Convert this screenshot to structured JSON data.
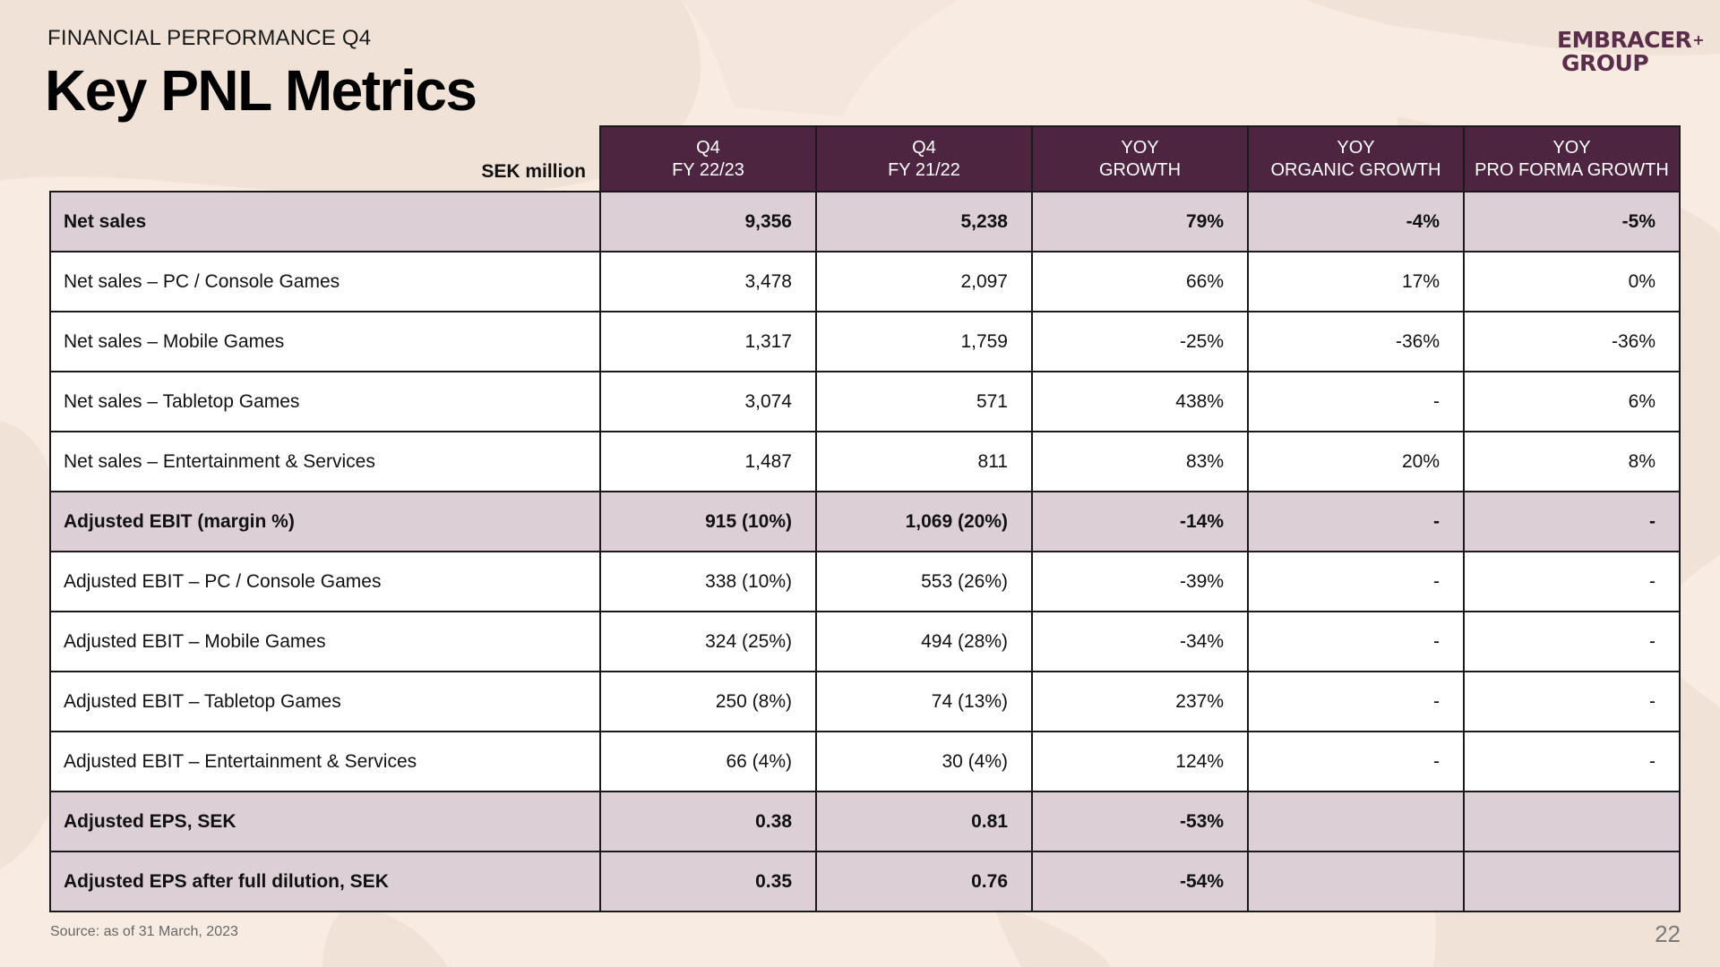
{
  "header": {
    "kicker": "FINANCIAL PERFORMANCE Q4",
    "title": "Key PNL Metrics"
  },
  "logo": {
    "line1": "EMBRACER",
    "line2": "GROUP",
    "plus": "+"
  },
  "table": {
    "unit_label": "SEK million",
    "columns": [
      {
        "line1": "Q4",
        "line2": "FY 22/23"
      },
      {
        "line1": "Q4",
        "line2": "FY 21/22"
      },
      {
        "line1": "YOY",
        "line2": "GROWTH"
      },
      {
        "line1": "YOY",
        "line2": "ORGANIC GROWTH"
      },
      {
        "line1": "YOY",
        "line2": "PRO FORMA GROWTH"
      }
    ],
    "rows": [
      {
        "label": "Net sales",
        "values": [
          "9,356",
          "5,238",
          "79%",
          "-4%",
          "-5%"
        ],
        "bold": true
      },
      {
        "label": "Net sales – PC / Console Games",
        "values": [
          "3,478",
          "2,097",
          "66%",
          "17%",
          "0%"
        ],
        "bold": false
      },
      {
        "label": "Net sales – Mobile Games",
        "values": [
          "1,317",
          "1,759",
          "-25%",
          "-36%",
          "-36%"
        ],
        "bold": false
      },
      {
        "label": "Net sales – Tabletop Games",
        "values": [
          "3,074",
          "571",
          "438%",
          "-",
          "6%"
        ],
        "bold": false
      },
      {
        "label": "Net sales – Entertainment & Services",
        "values": [
          "1,487",
          "811",
          "83%",
          "20%",
          "8%"
        ],
        "bold": false
      },
      {
        "label": "Adjusted EBIT (margin %)",
        "values": [
          "915 (10%)",
          "1,069 (20%)",
          "-14%",
          "-",
          "-"
        ],
        "bold": true
      },
      {
        "label": "Adjusted EBIT – PC / Console Games",
        "values": [
          "338 (10%)",
          "553 (26%)",
          "-39%",
          "-",
          "-"
        ],
        "bold": false
      },
      {
        "label": "Adjusted EBIT – Mobile Games",
        "values": [
          "324 (25%)",
          "494 (28%)",
          "-34%",
          "-",
          "-"
        ],
        "bold": false
      },
      {
        "label": "Adjusted EBIT – Tabletop Games",
        "values": [
          "250 (8%)",
          "74 (13%)",
          "237%",
          "-",
          "-"
        ],
        "bold": false
      },
      {
        "label": "Adjusted EBIT – Entertainment & Services",
        "values": [
          "66 (4%)",
          "30 (4%)",
          "124%",
          "-",
          "-"
        ],
        "bold": false
      },
      {
        "label": "Adjusted EPS, SEK",
        "values": [
          "0.38",
          "0.81",
          "-53%",
          "",
          ""
        ],
        "bold": true
      },
      {
        "label": "Adjusted EPS after full dilution, SEK",
        "values": [
          "0.35",
          "0.76",
          "-54%",
          "",
          ""
        ],
        "bold": true
      }
    ]
  },
  "footer": {
    "source": "Source: as of 31 March, 2023",
    "page_number": "22"
  },
  "colors": {
    "background": "#f8ece2",
    "header_fill": "#4e2540",
    "highlight_row": "#dccfd6",
    "brand": "#5a2e4a"
  }
}
